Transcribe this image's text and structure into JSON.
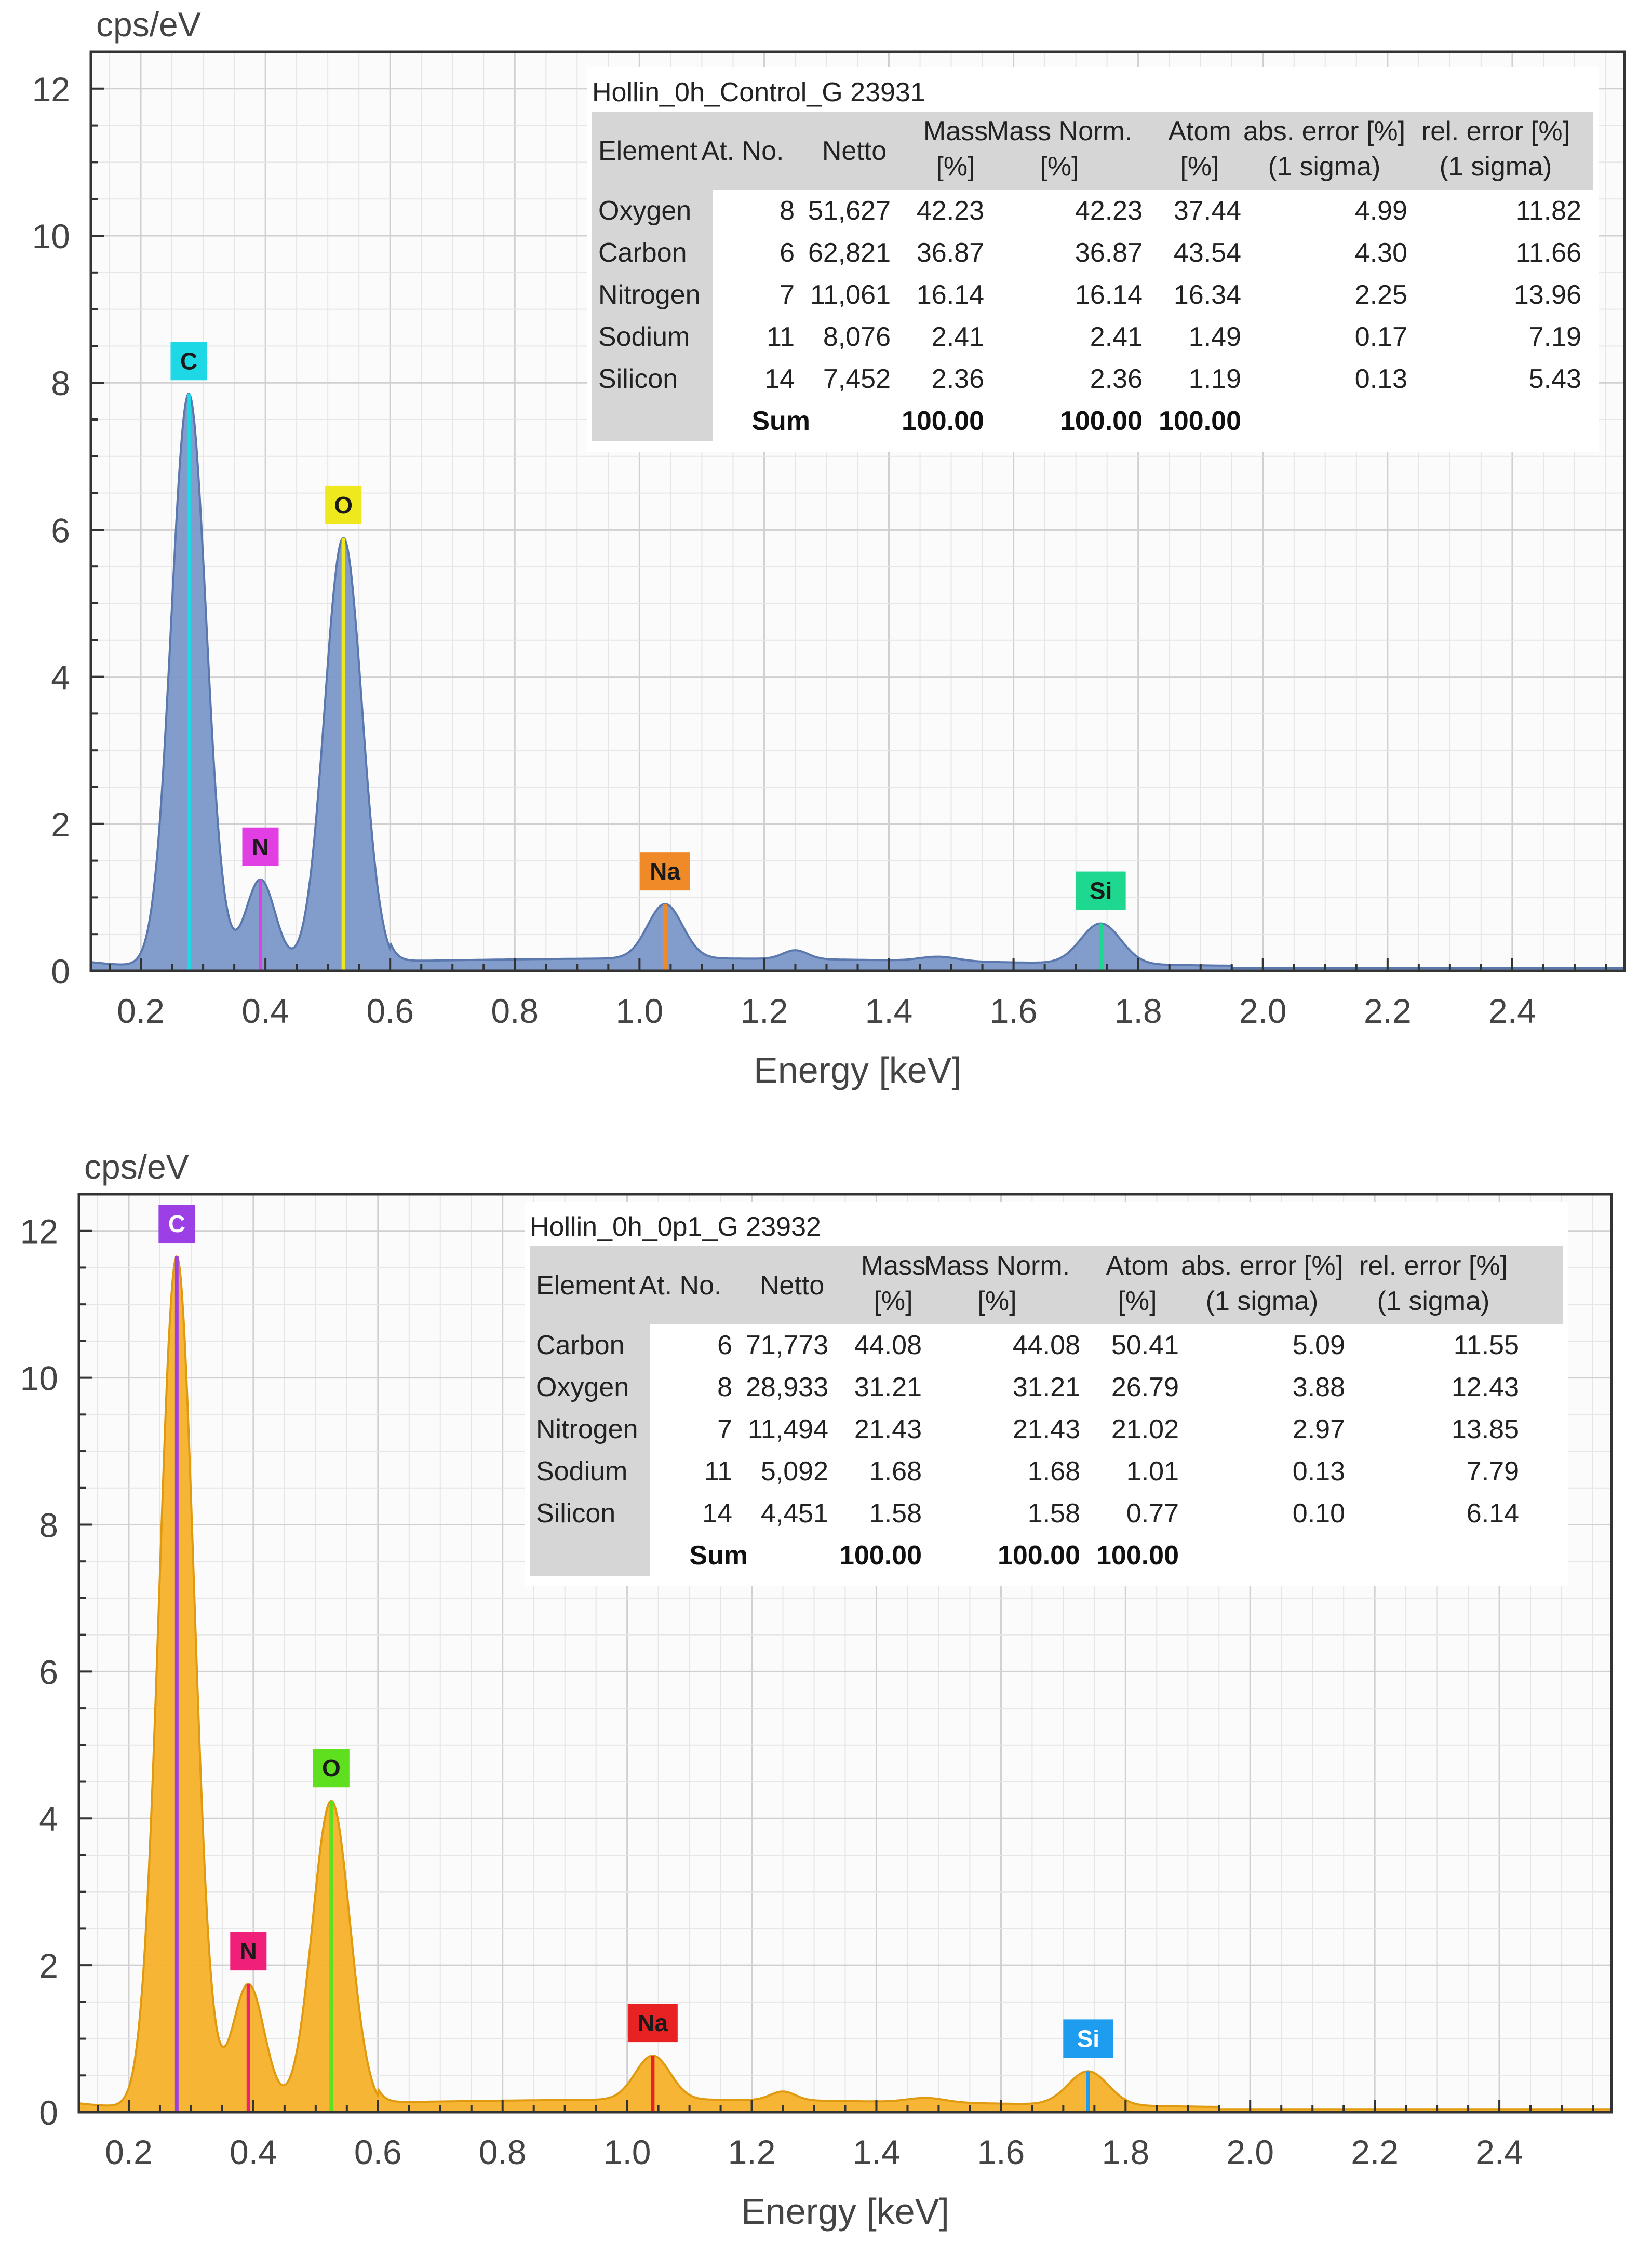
{
  "chart_data": [
    {
      "type": "area",
      "title": "Hollin_0h_Control_G 23931",
      "xlabel": "Energy [keV]",
      "ylabel": "cps/eV",
      "xlim": [
        0.12,
        2.58
      ],
      "ylim": [
        0,
        12.5
      ],
      "xticks": [
        "0.2",
        "0.4",
        "0.6",
        "0.8",
        "1.0",
        "1.2",
        "1.4",
        "1.6",
        "1.8",
        "2.0",
        "2.2",
        "2.4"
      ],
      "yticks": [
        "0",
        "2",
        "4",
        "6",
        "8",
        "10",
        "12"
      ],
      "grid": true,
      "series": [
        {
          "name": "spectrum",
          "color": "#7b97c8",
          "stroke": "#5a78ad"
        }
      ],
      "peaks": [
        {
          "label": "C",
          "energy": 0.277,
          "height": 7.8,
          "width": 0.028,
          "color": "#1ed8e6",
          "text_color": "#1a1a1a"
        },
        {
          "label": "N",
          "energy": 0.392,
          "height": 1.2,
          "width": 0.024,
          "color": "#e13ee3",
          "text_color": "#1a1a1a"
        },
        {
          "label": "O",
          "energy": 0.525,
          "height": 5.85,
          "width": 0.03,
          "color": "#f0e81e",
          "text_color": "#1a1a1a"
        },
        {
          "label": "Na",
          "energy": 1.041,
          "height": 0.74,
          "width": 0.028,
          "color": "#f08a28",
          "text_color": "#1a1a1a"
        },
        {
          "label": "Si",
          "energy": 1.74,
          "height": 0.55,
          "width": 0.032,
          "color": "#1ed890",
          "text_color": "#1a1a1a"
        }
      ],
      "table": {
        "headers": [
          "Element",
          "At. No.",
          "Netto",
          "Mass\n[%]",
          "Mass Norm.\n[%]",
          "Atom\n[%]",
          "abs. error [%]\n(1 sigma)",
          "rel. error [%]\n(1 sigma)"
        ],
        "rows": [
          [
            "Oxygen",
            "8",
            "51,627",
            "42.23",
            "42.23",
            "37.44",
            "4.99",
            "11.82"
          ],
          [
            "Carbon",
            "6",
            "62,821",
            "36.87",
            "36.87",
            "43.54",
            "4.30",
            "11.66"
          ],
          [
            "Nitrogen",
            "7",
            "11,061",
            "16.14",
            "16.14",
            "16.34",
            "2.25",
            "13.96"
          ],
          [
            "Sodium",
            "11",
            "8,076",
            "2.41",
            "2.41",
            "1.49",
            "0.17",
            "7.19"
          ],
          [
            "Silicon",
            "14",
            "7,452",
            "2.36",
            "2.36",
            "1.19",
            "0.13",
            "5.43"
          ]
        ],
        "sum_label": "Sum",
        "sum_values": [
          "100.00",
          "100.00",
          "100.00"
        ]
      }
    },
    {
      "type": "area",
      "title": "Hollin_0h_0p1_G 23932",
      "xlabel": "Energy [keV]",
      "ylabel": "cps/eV",
      "xlim": [
        0.12,
        2.58
      ],
      "ylim": [
        0,
        12.5
      ],
      "xticks": [
        "0.2",
        "0.4",
        "0.6",
        "0.8",
        "1.0",
        "1.2",
        "1.4",
        "1.6",
        "1.8",
        "2.0",
        "2.2",
        "2.4"
      ],
      "yticks": [
        "0",
        "2",
        "4",
        "6",
        "8",
        "10",
        "12"
      ],
      "grid": true,
      "series": [
        {
          "name": "spectrum",
          "color": "#f7b12a",
          "stroke": "#e09a10"
        }
      ],
      "peaks": [
        {
          "label": "C",
          "energy": 0.277,
          "height": 11.6,
          "width": 0.028,
          "color": "#9c40e6",
          "text_color": "#ffffff"
        },
        {
          "label": "N",
          "energy": 0.392,
          "height": 1.7,
          "width": 0.026,
          "color": "#f0207a",
          "text_color": "#1a1a1a"
        },
        {
          "label": "O",
          "energy": 0.525,
          "height": 4.2,
          "width": 0.03,
          "color": "#5ee01e",
          "text_color": "#1a1a1a"
        },
        {
          "label": "Na",
          "energy": 1.041,
          "height": 0.6,
          "width": 0.028,
          "color": "#e82222",
          "text_color": "#1a1a1a"
        },
        {
          "label": "Si",
          "energy": 1.74,
          "height": 0.46,
          "width": 0.032,
          "color": "#1e9cf0",
          "text_color": "#ffffff"
        }
      ],
      "table": {
        "headers": [
          "Element",
          "At. No.",
          "Netto",
          "Mass\n[%]",
          "Mass Norm.\n[%]",
          "Atom\n[%]",
          "abs. error [%]\n(1 sigma)",
          "rel. error [%]\n(1 sigma)"
        ],
        "rows": [
          [
            "Carbon",
            "6",
            "71,773",
            "44.08",
            "44.08",
            "50.41",
            "5.09",
            "11.55"
          ],
          [
            "Oxygen",
            "8",
            "28,933",
            "31.21",
            "31.21",
            "26.79",
            "3.88",
            "12.43"
          ],
          [
            "Nitrogen",
            "7",
            "11,494",
            "21.43",
            "21.43",
            "21.02",
            "2.97",
            "13.85"
          ],
          [
            "Sodium",
            "11",
            "5,092",
            "1.68",
            "1.68",
            "1.01",
            "0.13",
            "7.79"
          ],
          [
            "Silicon",
            "14",
            "4,451",
            "1.58",
            "1.58",
            "0.77",
            "0.10",
            "6.14"
          ]
        ],
        "sum_label": "Sum",
        "sum_values": [
          "100.00",
          "100.00",
          "100.00"
        ]
      }
    }
  ]
}
